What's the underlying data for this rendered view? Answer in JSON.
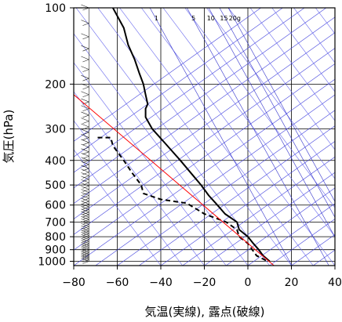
{
  "chart_data": {
    "type": "line",
    "subtype": "skew-T log-p diagram",
    "xlabel": "気温(実線), 露点(破線)",
    "ylabel": "気圧(hPa)",
    "xlim": [
      -80,
      40
    ],
    "ylim": [
      1040,
      100
    ],
    "y_scale": "log",
    "x_ticks": [
      -80,
      -60,
      -40,
      -20,
      0,
      20,
      40
    ],
    "y_ticks": [
      100,
      200,
      300,
      400,
      500,
      600,
      700,
      800,
      900,
      1000
    ],
    "grid": true,
    "mixing_ratio_labels": [
      "1",
      "5",
      "10",
      "15",
      "20g"
    ],
    "series": [
      {
        "style": "solid",
        "color": "#000000",
        "points": [
          {
            "p": 100,
            "t": -62
          },
          {
            "p": 120,
            "t": -57
          },
          {
            "p": 140,
            "t": -55
          },
          {
            "p": 160,
            "t": -52
          },
          {
            "p": 180,
            "t": -50
          },
          {
            "p": 200,
            "t": -48
          },
          {
            "p": 220,
            "t": -47
          },
          {
            "p": 240,
            "t": -46
          },
          {
            "p": 250,
            "t": -47
          },
          {
            "p": 270,
            "t": -47
          },
          {
            "p": 300,
            "t": -44
          },
          {
            "p": 350,
            "t": -37
          },
          {
            "p": 400,
            "t": -31
          },
          {
            "p": 450,
            "t": -26
          },
          {
            "p": 500,
            "t": -21.5
          },
          {
            "p": 550,
            "t": -18
          },
          {
            "p": 600,
            "t": -14
          },
          {
            "p": 650,
            "t": -10.5
          },
          {
            "p": 700,
            "t": -5
          },
          {
            "p": 750,
            "t": -4
          },
          {
            "p": 800,
            "t": 0
          },
          {
            "p": 850,
            "t": 2.5
          },
          {
            "p": 900,
            "t": 5
          },
          {
            "p": 950,
            "t": 7
          },
          {
            "p": 1000,
            "t": 10
          }
        ]
      },
      {
        "style": "dashed",
        "color": "#000000",
        "points": [
          {
            "p": 325,
            "t": -69
          },
          {
            "p": 325,
            "t": -63
          },
          {
            "p": 350,
            "t": -62
          },
          {
            "p": 400,
            "t": -57
          },
          {
            "p": 450,
            "t": -53
          },
          {
            "p": 500,
            "t": -49
          },
          {
            "p": 540,
            "t": -48
          },
          {
            "p": 570,
            "t": -40
          },
          {
            "p": 590,
            "t": -28
          },
          {
            "p": 650,
            "t": -20
          },
          {
            "p": 700,
            "t": -10
          },
          {
            "p": 750,
            "t": -5
          },
          {
            "p": 800,
            "t": -4
          },
          {
            "p": 850,
            "t": 0
          },
          {
            "p": 900,
            "t": 2
          },
          {
            "p": 950,
            "t": 4
          },
          {
            "p": 1000,
            "t": 9
          }
        ]
      },
      {
        "style": "solid",
        "color": "#ff0000",
        "points": [
          {
            "p": 220,
            "t": -80
          },
          {
            "p": 1040,
            "t": 12
          }
        ]
      }
    ]
  }
}
